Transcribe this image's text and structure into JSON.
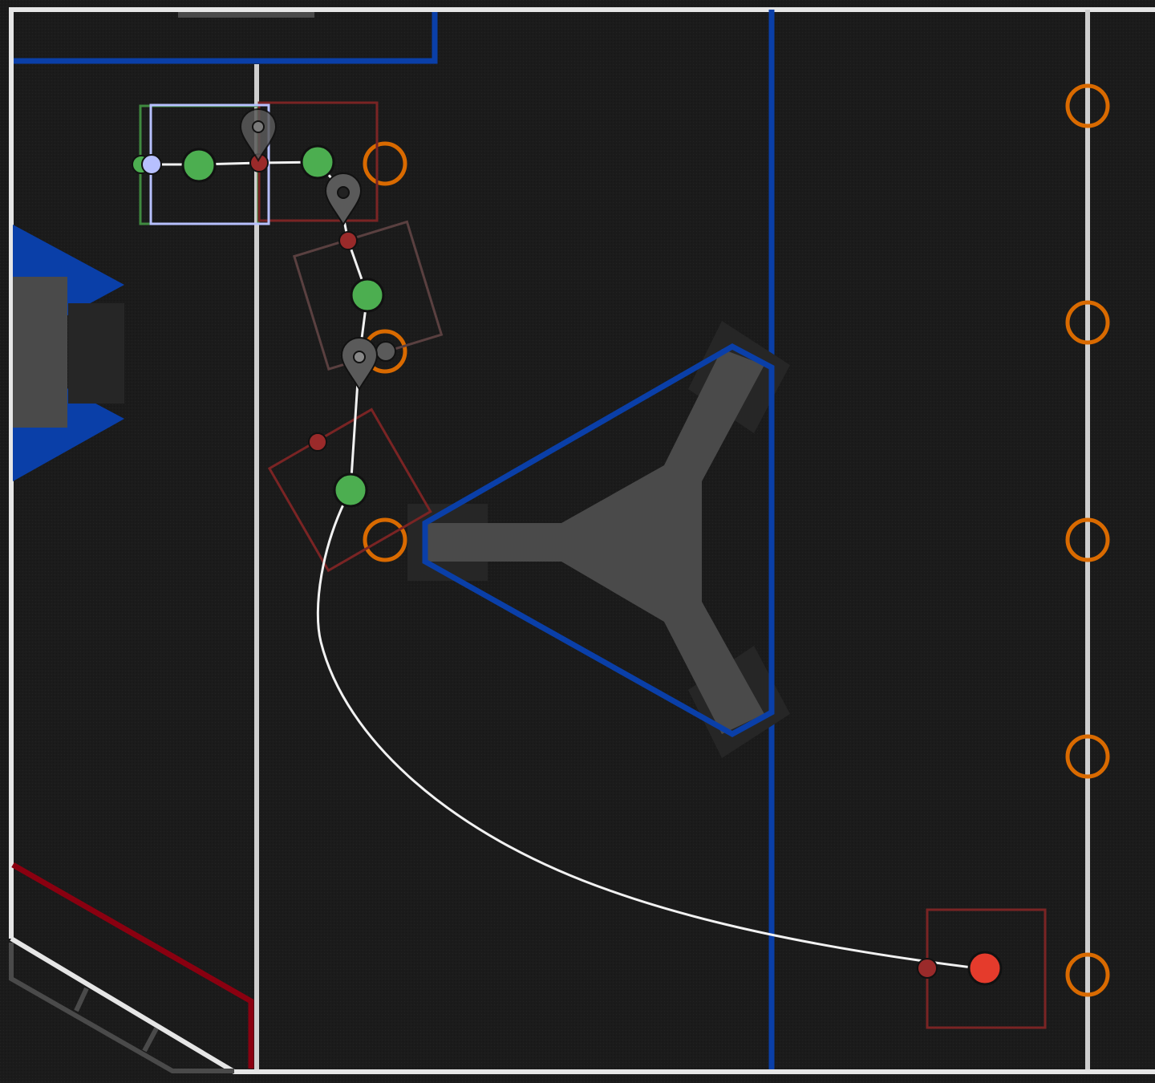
{
  "app": {
    "title": ""
  },
  "colors": {
    "field_background": "#1b1b1b",
    "field_wall": "#e6e6e6",
    "alliance_blue": "#0a3fa8",
    "alliance_red": "#8a0010",
    "structure_gray": "#4a4a4a",
    "note_orange": "#d96a00",
    "path_white": "#f2f2f2",
    "waypoint_green": "#4cae50",
    "heading_red": "#9a2a2a",
    "robot_box_red": "#7a2424",
    "robot_box_green": "#3f8a3f",
    "robot_box_selected": "#b7c0ff",
    "end_point_red": "#e53b2c",
    "marker_gray": "#5a5a5a"
  },
  "icons": {
    "event_marker": "map-pin-icon",
    "waypoint": "circle-icon",
    "game_piece": "ring-icon"
  },
  "path": {
    "waypoints_count": 5,
    "event_markers_count": 3,
    "game_pieces_count": 8
  }
}
